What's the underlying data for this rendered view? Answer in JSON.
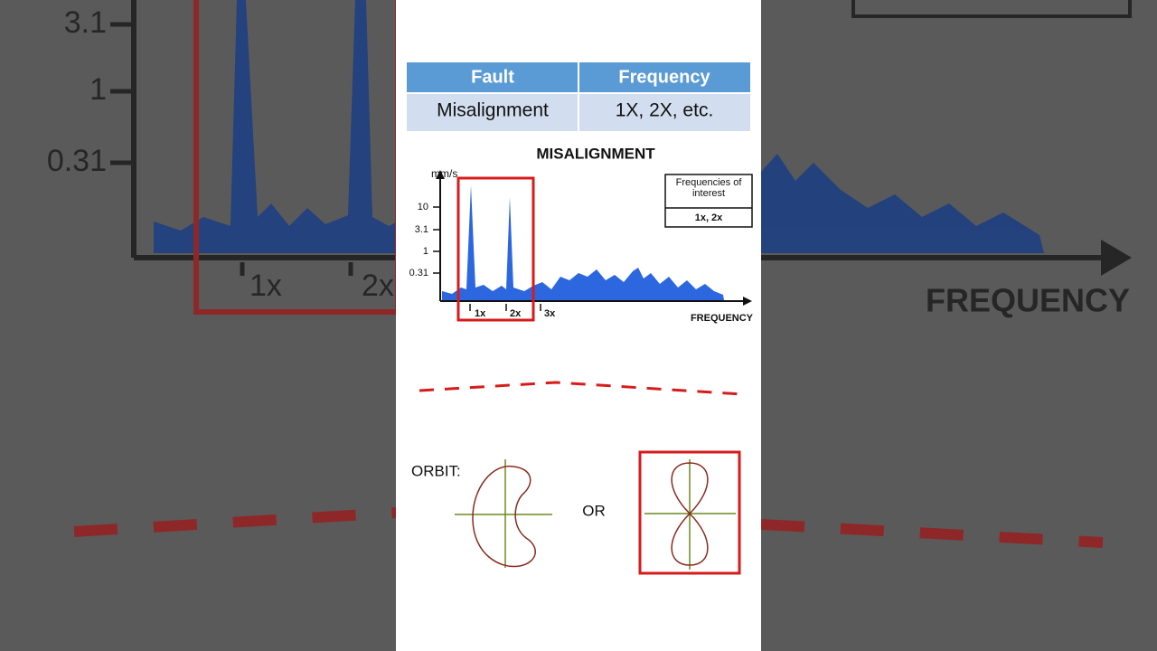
{
  "table": {
    "header": [
      "Fault",
      "Frequency"
    ],
    "rows": [
      [
        "Misalignment",
        "1X, 2X, etc."
      ]
    ]
  },
  "spectrum": {
    "title": "MISALIGNMENT",
    "y_label": "mm/s",
    "y_ticks": [
      "10",
      "3.1",
      "1",
      "0.31"
    ],
    "x_ticks": [
      "1x",
      "2x",
      "3x"
    ],
    "x_label": "FREQUENCY",
    "legend": {
      "title": "Frequencies of interest",
      "value": "1x, 2x"
    }
  },
  "orbit": {
    "label": "ORBIT:",
    "separator": "OR"
  }
}
